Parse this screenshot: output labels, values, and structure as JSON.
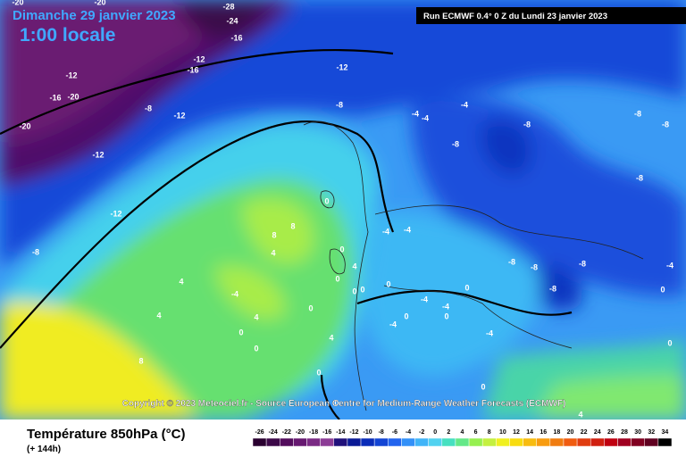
{
  "header": {
    "date": "Dimanche 29 janvier 2023",
    "time": "1:00 locale",
    "run": "Run ECMWF 0.4° 0 Z du Lundi 23 janvier 2023"
  },
  "map": {
    "contour_labels": [
      "-20",
      "-20",
      "-28",
      "-24",
      "-16",
      "-12",
      "-16",
      "-12",
      "-16",
      "-20",
      "-20",
      "-8",
      "-12",
      "-12",
      "-12",
      "-8",
      "-12",
      "-8",
      "-4",
      "-4",
      "-4",
      "-8",
      "-8",
      "-8",
      "-8",
      "-8",
      "8",
      "8",
      "4",
      "0",
      "4",
      "-4",
      "4",
      "4",
      "8",
      "4",
      "-4",
      "-4",
      "0",
      "4",
      "0",
      "0",
      "0",
      "0",
      "0",
      "0",
      "0",
      "-4",
      "0",
      "-4",
      "0",
      "-4",
      "0",
      "-4",
      "-8",
      "-8",
      "-8",
      "-8",
      "-4",
      "0",
      "0",
      "0",
      "4",
      "0",
      "0"
    ]
  },
  "copyright": "Copyright © 2023 Meteociel.fr - Source European Centre for Medium-Range Weather Forecasts (ECMWF)",
  "legend": {
    "title": "Température 850hPa (°C)",
    "lead": "(+ 144h)",
    "ticks": [
      -26,
      -24,
      -22,
      -20,
      -18,
      -16,
      -14,
      -12,
      -10,
      -8,
      -6,
      -4,
      -2,
      0,
      2,
      4,
      6,
      8,
      10,
      12,
      14,
      16,
      18,
      20,
      22,
      24,
      26,
      28,
      30,
      32,
      34
    ],
    "colors": [
      "#2a0030",
      "#3c0848",
      "#520c5c",
      "#661870",
      "#7a2a84",
      "#8c3c96",
      "#20107a",
      "#0a1a96",
      "#0a2cb8",
      "#1244d4",
      "#2264ee",
      "#3290f8",
      "#40b4f8",
      "#52d2f0",
      "#46e0c0",
      "#64e888",
      "#96f050",
      "#c4f040",
      "#f0f020",
      "#f8dc10",
      "#f8bc10",
      "#f89c10",
      "#f07c10",
      "#f05c10",
      "#e03c10",
      "#d02010",
      "#c00010",
      "#a00020",
      "#800020",
      "#600020",
      "#000000"
    ]
  }
}
